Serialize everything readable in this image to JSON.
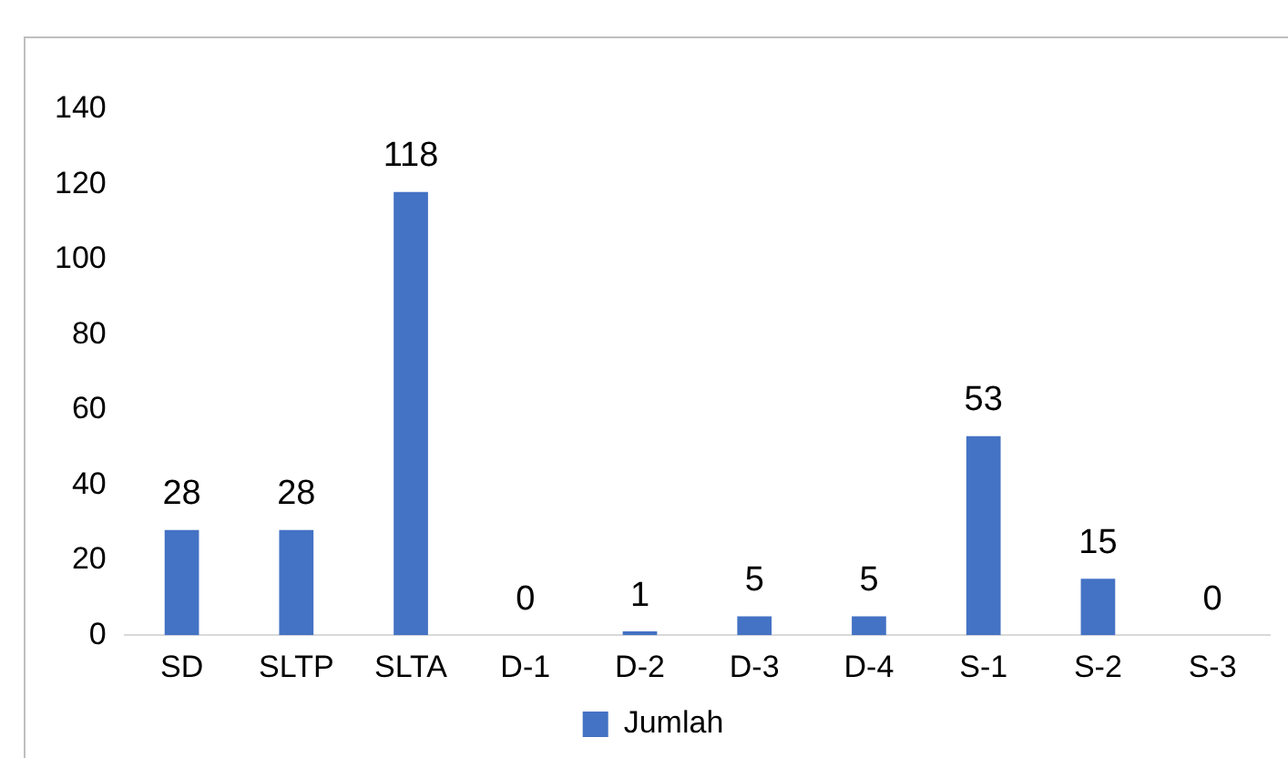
{
  "chart_data": {
    "type": "bar",
    "categories": [
      "SD",
      "SLTP",
      "SLTA",
      "D-1",
      "D-2",
      "D-3",
      "D-4",
      "S-1",
      "S-2",
      "S-3"
    ],
    "series": [
      {
        "name": "Jumlah",
        "color": "#4472c4",
        "values": [
          28,
          28,
          118,
          0,
          1,
          5,
          5,
          53,
          15,
          0
        ]
      }
    ],
    "ylim": [
      0,
      140
    ],
    "yticks": [
      0,
      20,
      40,
      60,
      80,
      100,
      120,
      140
    ],
    "grid": false,
    "data_labels": true,
    "legend": "bottom"
  }
}
